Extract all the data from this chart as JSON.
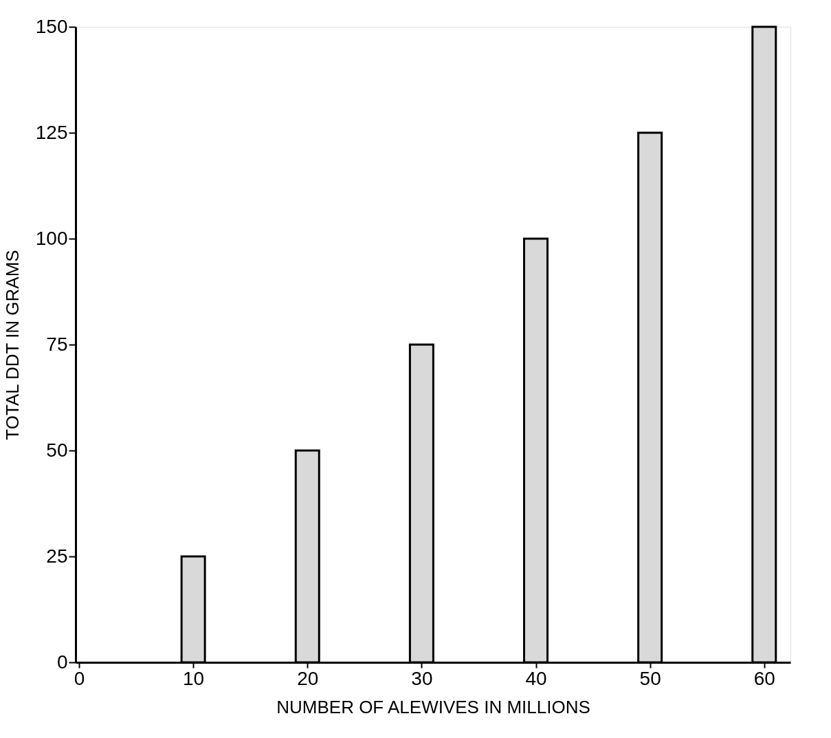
{
  "chart_data": {
    "type": "bar",
    "xlabel": "NUMBER  OF  ALEWIVES  IN  MILLIONS",
    "ylabel": "TOTAL  DDT  IN  GRAMS",
    "x": [
      10,
      20,
      30,
      40,
      50,
      60
    ],
    "values": [
      25,
      50,
      75,
      100,
      125,
      150
    ],
    "color": "#d9d9d9",
    "xlim": [
      0,
      62
    ],
    "xticks": [
      0,
      10,
      20,
      30,
      40,
      50,
      60
    ],
    "ylim": [
      0,
      150
    ],
    "yticks": [
      0,
      25,
      50,
      75,
      100,
      125,
      150
    ],
    "grid": false
  }
}
